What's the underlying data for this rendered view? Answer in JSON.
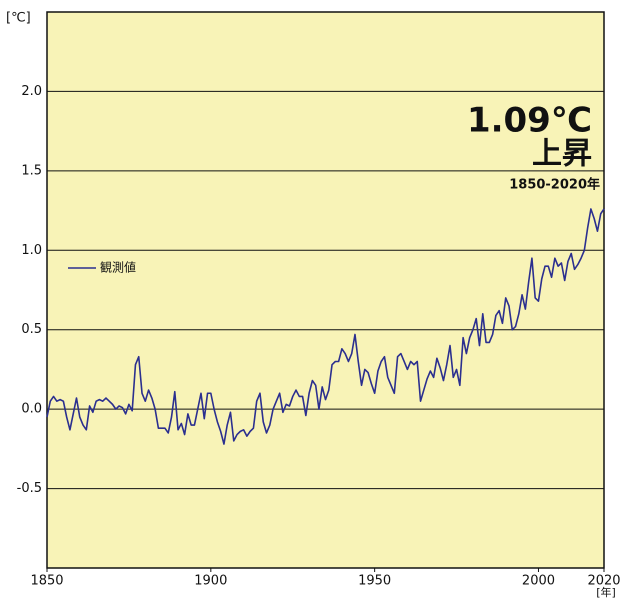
{
  "chart_data": {
    "type": "line",
    "y_unit_label": "[℃]",
    "x_unit_label": "[年]",
    "annotations": [
      "1.09℃",
      "上昇",
      "1850-2020年"
    ],
    "legend": "left",
    "background": "#f8f3b7",
    "x": [
      1850,
      1851,
      1852,
      1853,
      1854,
      1855,
      1856,
      1857,
      1858,
      1859,
      1860,
      1861,
      1862,
      1863,
      1864,
      1865,
      1866,
      1867,
      1868,
      1869,
      1870,
      1871,
      1872,
      1873,
      1874,
      1875,
      1876,
      1877,
      1878,
      1879,
      1880,
      1881,
      1882,
      1883,
      1884,
      1885,
      1886,
      1887,
      1888,
      1889,
      1890,
      1891,
      1892,
      1893,
      1894,
      1895,
      1896,
      1897,
      1898,
      1899,
      1900,
      1901,
      1902,
      1903,
      1904,
      1905,
      1906,
      1907,
      1908,
      1909,
      1910,
      1911,
      1912,
      1913,
      1914,
      1915,
      1916,
      1917,
      1918,
      1919,
      1920,
      1921,
      1922,
      1923,
      1924,
      1925,
      1926,
      1927,
      1928,
      1929,
      1930,
      1931,
      1932,
      1933,
      1934,
      1935,
      1936,
      1937,
      1938,
      1939,
      1940,
      1941,
      1942,
      1943,
      1944,
      1945,
      1946,
      1947,
      1948,
      1949,
      1950,
      1951,
      1952,
      1953,
      1954,
      1955,
      1956,
      1957,
      1958,
      1959,
      1960,
      1961,
      1962,
      1963,
      1964,
      1965,
      1966,
      1967,
      1968,
      1969,
      1970,
      1971,
      1972,
      1973,
      1974,
      1975,
      1976,
      1977,
      1978,
      1979,
      1980,
      1981,
      1982,
      1983,
      1984,
      1985,
      1986,
      1987,
      1988,
      1989,
      1990,
      1991,
      1992,
      1993,
      1994,
      1995,
      1996,
      1997,
      1998,
      1999,
      2000,
      2001,
      2002,
      2003,
      2004,
      2005,
      2006,
      2007,
      2008,
      2009,
      2010,
      2011,
      2012,
      2013,
      2014,
      2015,
      2016,
      2017,
      2018,
      2019,
      2020
    ],
    "series": [
      {
        "name": "観測値",
        "color": "#2b2f8f",
        "values": [
          -0.05,
          0.05,
          0.08,
          0.05,
          0.06,
          0.05,
          -0.05,
          -0.13,
          -0.03,
          0.07,
          -0.05,
          -0.1,
          -0.13,
          0.02,
          -0.02,
          0.05,
          0.06,
          0.05,
          0.07,
          0.05,
          0.03,
          0.0,
          0.02,
          0.01,
          -0.03,
          0.03,
          -0.01,
          0.28,
          0.33,
          0.1,
          0.05,
          0.12,
          0.07,
          0.0,
          -0.12,
          -0.12,
          -0.12,
          -0.15,
          -0.05,
          0.11,
          -0.13,
          -0.09,
          -0.16,
          -0.03,
          -0.1,
          -0.1,
          0.0,
          0.1,
          -0.06,
          0.1,
          0.1,
          0.0,
          -0.08,
          -0.14,
          -0.22,
          -0.1,
          -0.02,
          -0.2,
          -0.16,
          -0.14,
          -0.13,
          -0.17,
          -0.14,
          -0.12,
          0.05,
          0.1,
          -0.08,
          -0.15,
          -0.1,
          0.0,
          0.05,
          0.1,
          -0.02,
          0.03,
          0.02,
          0.08,
          0.12,
          0.08,
          0.08,
          -0.04,
          0.1,
          0.18,
          0.15,
          0.0,
          0.14,
          0.06,
          0.12,
          0.28,
          0.3,
          0.3,
          0.38,
          0.35,
          0.3,
          0.35,
          0.47,
          0.3,
          0.15,
          0.25,
          0.23,
          0.16,
          0.1,
          0.24,
          0.3,
          0.33,
          0.2,
          0.15,
          0.1,
          0.33,
          0.35,
          0.3,
          0.25,
          0.3,
          0.28,
          0.3,
          0.05,
          0.12,
          0.19,
          0.24,
          0.2,
          0.32,
          0.26,
          0.18,
          0.28,
          0.4,
          0.2,
          0.25,
          0.15,
          0.45,
          0.35,
          0.45,
          0.5,
          0.57,
          0.4,
          0.6,
          0.42,
          0.42,
          0.47,
          0.59,
          0.62,
          0.54,
          0.7,
          0.65,
          0.5,
          0.52,
          0.6,
          0.72,
          0.63,
          0.8,
          0.95,
          0.7,
          0.68,
          0.82,
          0.9,
          0.9,
          0.83,
          0.95,
          0.9,
          0.92,
          0.81,
          0.93,
          0.98,
          0.88,
          0.91,
          0.95,
          1.0,
          1.14,
          1.26,
          1.2,
          1.12,
          1.23,
          1.26
        ]
      }
    ],
    "xlim": [
      1850,
      2020
    ],
    "xticks": [
      1850,
      1900,
      1950,
      2000,
      2020
    ],
    "ylim": [
      -1.0,
      2.5
    ],
    "yticks": [
      -0.5,
      {
        "value": 0,
        "label": "0.0"
      },
      0.5,
      {
        "value": 1,
        "label": "1.0"
      },
      1.5,
      {
        "value": 2,
        "label": "2.0"
      }
    ],
    "grid": true
  }
}
